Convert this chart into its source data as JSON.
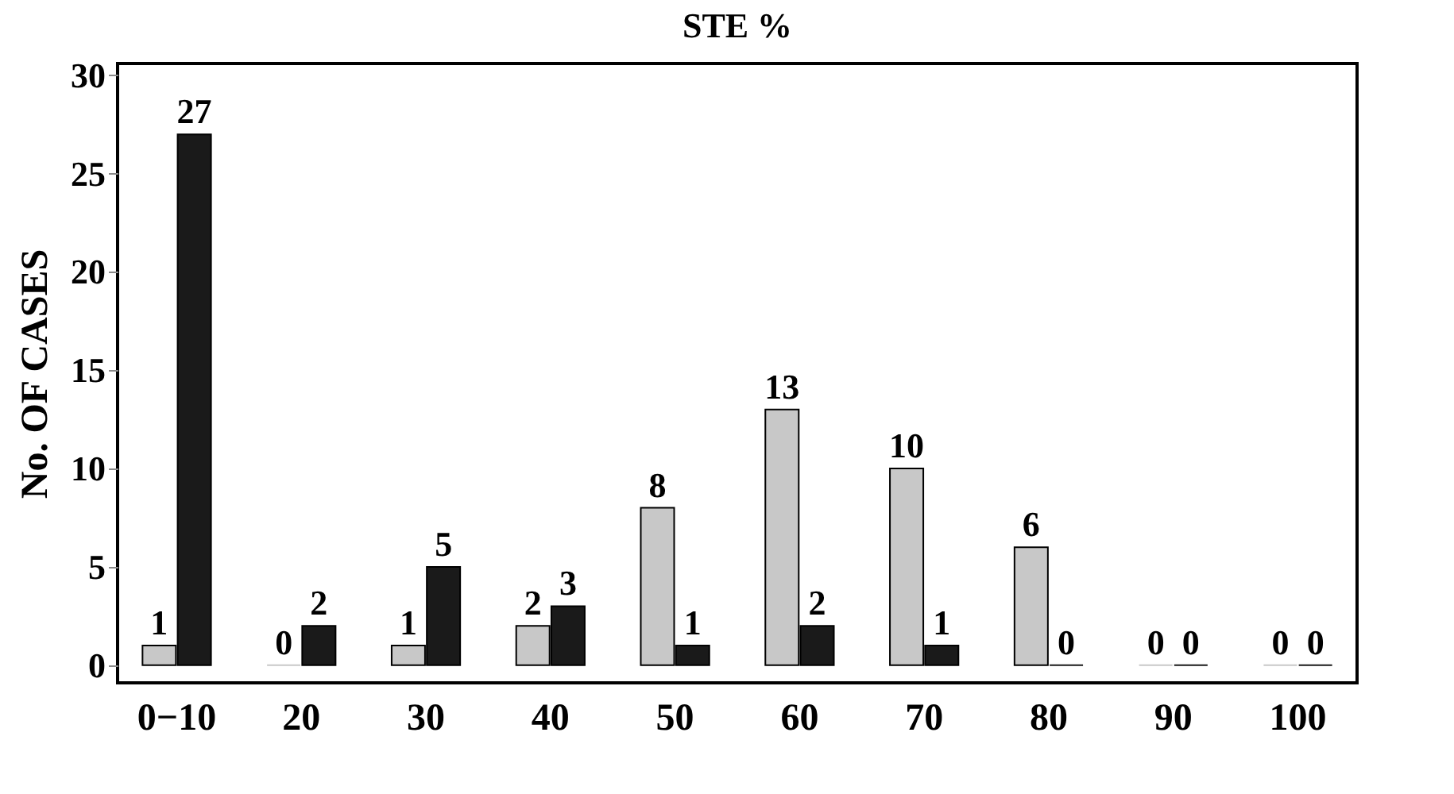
{
  "chart_data": {
    "type": "bar",
    "title": "STE %",
    "ylabel": "No. OF CASES",
    "categories": [
      "0−10",
      "20",
      "30",
      "40",
      "50",
      "60",
      "70",
      "80",
      "90",
      "100"
    ],
    "series": [
      {
        "color": "#c8c8c8",
        "values": [
          1,
          0,
          1,
          2,
          8,
          13,
          10,
          6,
          0,
          0
        ]
      },
      {
        "color": "#1a1a1a",
        "values": [
          27,
          2,
          5,
          3,
          1,
          2,
          1,
          0,
          0,
          0
        ]
      }
    ],
    "ylim": [
      -0.9,
      30.6
    ],
    "yticks": [
      0,
      5,
      10,
      15,
      20,
      25,
      30
    ],
    "data_labels": true,
    "grid": false,
    "legend": false
  }
}
